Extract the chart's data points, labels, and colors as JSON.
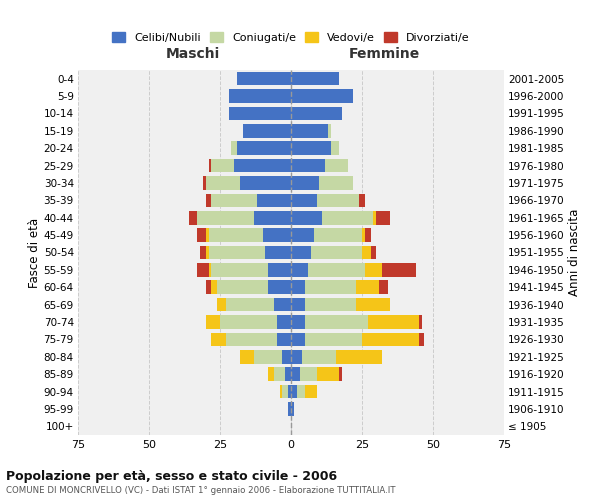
{
  "age_groups": [
    "100+",
    "95-99",
    "90-94",
    "85-89",
    "80-84",
    "75-79",
    "70-74",
    "65-69",
    "60-64",
    "55-59",
    "50-54",
    "45-49",
    "40-44",
    "35-39",
    "30-34",
    "25-29",
    "20-24",
    "15-19",
    "10-14",
    "5-9",
    "0-4"
  ],
  "birth_years": [
    "≤ 1905",
    "1906-1910",
    "1911-1915",
    "1916-1920",
    "1921-1925",
    "1926-1930",
    "1931-1935",
    "1936-1940",
    "1941-1945",
    "1946-1950",
    "1951-1955",
    "1956-1960",
    "1961-1965",
    "1966-1970",
    "1971-1975",
    "1976-1980",
    "1981-1985",
    "1986-1990",
    "1991-1995",
    "1996-2000",
    "2001-2005"
  ],
  "male": {
    "celibi": [
      0,
      1,
      1,
      2,
      3,
      5,
      5,
      6,
      8,
      8,
      9,
      10,
      13,
      12,
      18,
      20,
      19,
      17,
      22,
      22,
      19
    ],
    "coniugati": [
      0,
      0,
      2,
      4,
      10,
      18,
      20,
      17,
      18,
      20,
      20,
      19,
      20,
      16,
      12,
      8,
      2,
      0,
      0,
      0,
      0
    ],
    "vedovi": [
      0,
      0,
      1,
      2,
      5,
      5,
      5,
      3,
      2,
      1,
      1,
      1,
      0,
      0,
      0,
      0,
      0,
      0,
      0,
      0,
      0
    ],
    "divorziati": [
      0,
      0,
      0,
      0,
      0,
      0,
      0,
      0,
      2,
      4,
      2,
      3,
      3,
      2,
      1,
      1,
      0,
      0,
      0,
      0,
      0
    ]
  },
  "female": {
    "nubili": [
      0,
      1,
      2,
      3,
      4,
      5,
      5,
      5,
      5,
      6,
      7,
      8,
      11,
      9,
      10,
      12,
      14,
      13,
      18,
      22,
      17
    ],
    "coniugate": [
      0,
      0,
      3,
      6,
      12,
      20,
      22,
      18,
      18,
      20,
      18,
      17,
      18,
      15,
      12,
      8,
      3,
      1,
      0,
      0,
      0
    ],
    "vedove": [
      0,
      0,
      4,
      8,
      16,
      20,
      18,
      12,
      8,
      6,
      3,
      1,
      1,
      0,
      0,
      0,
      0,
      0,
      0,
      0,
      0
    ],
    "divorziate": [
      0,
      0,
      0,
      1,
      0,
      2,
      1,
      0,
      3,
      12,
      2,
      2,
      5,
      2,
      0,
      0,
      0,
      0,
      0,
      0,
      0
    ]
  },
  "colors": {
    "celibi_nubili": "#4472c4",
    "coniugati": "#c5d8a4",
    "vedovi": "#f5c518",
    "divorziati": "#c0392b"
  },
  "xlim": 75,
  "title": "Popolazione per età, sesso e stato civile - 2006",
  "subtitle": "COMUNE DI MONCRIVELLO (VC) - Dati ISTAT 1° gennaio 2006 - Elaborazione TUTTITALIA.IT",
  "ylabel_left": "Fasce di età",
  "ylabel_right": "Anni di nascita",
  "xlabel_left": "Maschi",
  "xlabel_right": "Femmine",
  "bg_color": "#f0f0f0",
  "grid_color": "#cccccc"
}
